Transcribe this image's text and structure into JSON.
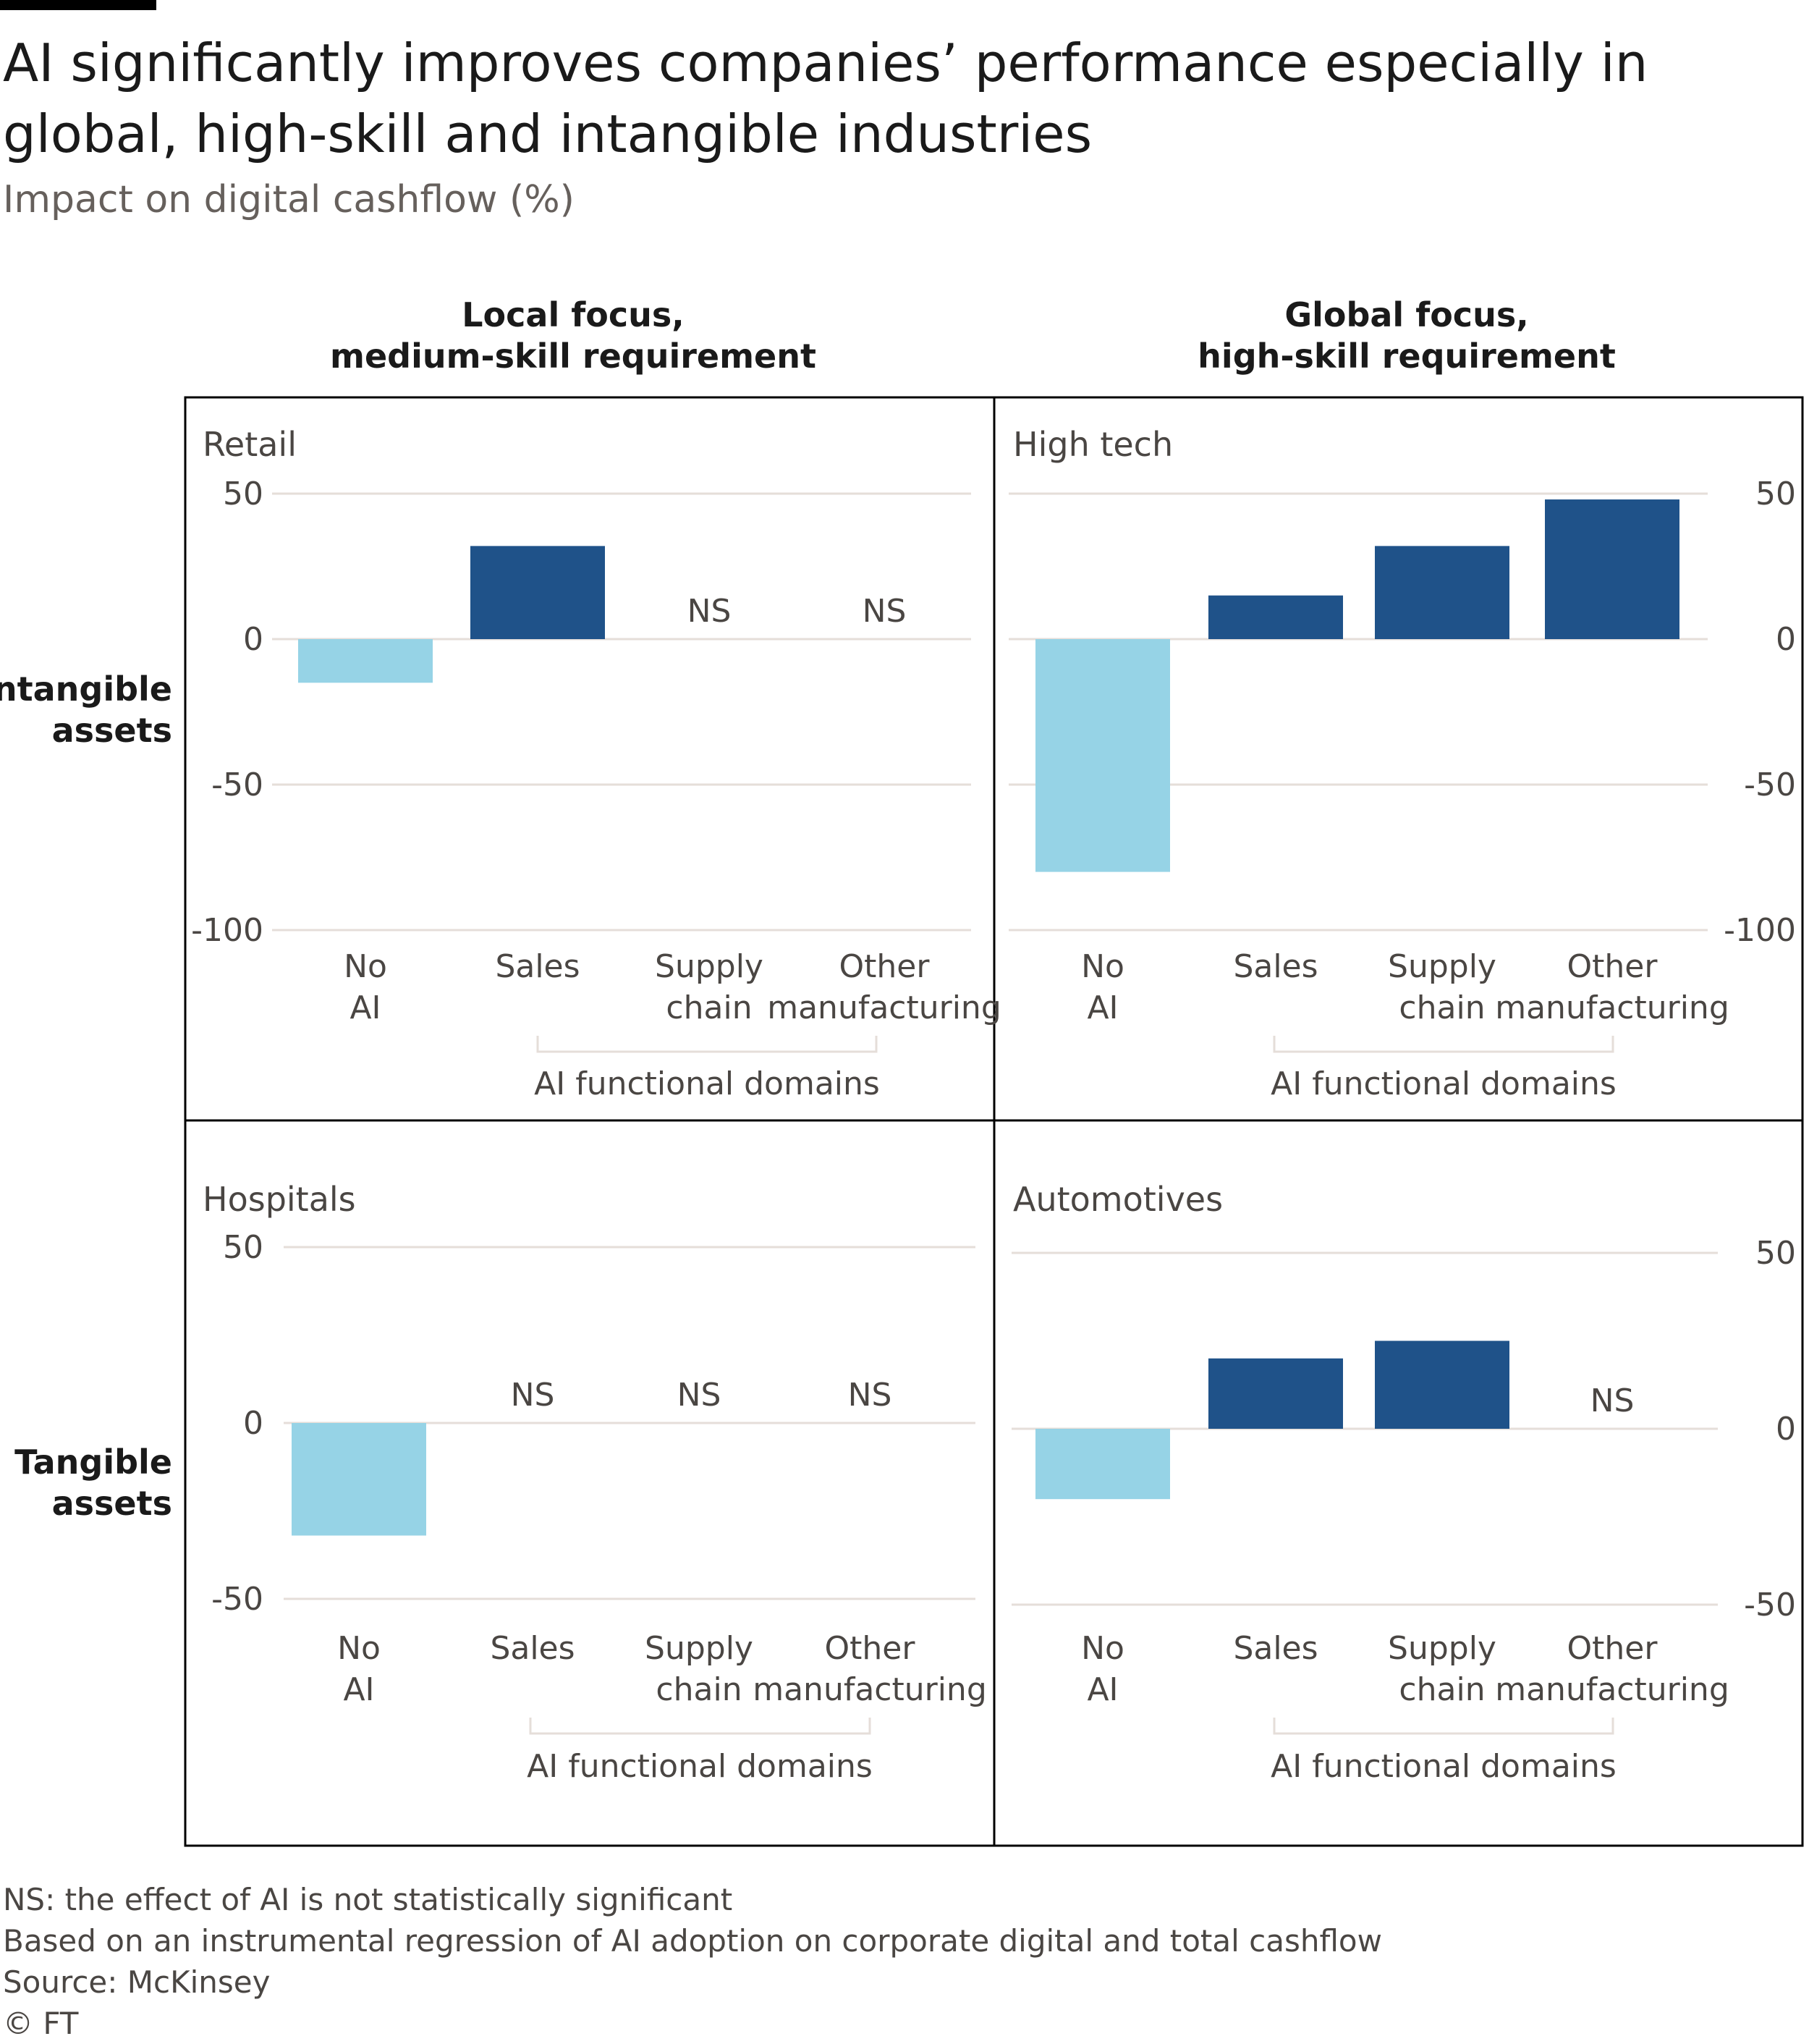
{
  "title": "AI significantly improves companies’ performance especially in global, high-skill and intangible industries",
  "subtitle": "Impact on digital cashflow (%)",
  "column_headers": [
    {
      "line1": "Local focus,",
      "line2": "medium-skill requirement"
    },
    {
      "line1": "Global focus,",
      "line2": "high-skill requirement"
    }
  ],
  "row_headers": [
    {
      "line1": "Intangible",
      "line2": "assets"
    },
    {
      "line1": "Tangible",
      "line2": "assets"
    }
  ],
  "domain_label": "AI functional domains",
  "ns_label": "NS",
  "colors": {
    "no_ai": "#96d3e6",
    "ai": "#1f5289",
    "grid": "#e5ded9",
    "text": "#4a4643",
    "border": "#000000"
  },
  "chart_data": [
    {
      "type": "bar",
      "title": "Retail",
      "categories": [
        "No AI",
        "Sales",
        "Supply chain",
        "Other manufacturing"
      ],
      "values": [
        -15,
        32,
        null,
        null
      ],
      "significant": [
        true,
        true,
        false,
        false
      ],
      "yticks": [
        50,
        0,
        -50,
        -100
      ],
      "ylim": [
        -100,
        50
      ]
    },
    {
      "type": "bar",
      "title": "High tech",
      "categories": [
        "No AI",
        "Sales",
        "Supply chain",
        "Other manufacturing"
      ],
      "values": [
        -80,
        15,
        32,
        48
      ],
      "significant": [
        true,
        true,
        true,
        true
      ],
      "yticks": [
        50,
        0,
        -50,
        -100
      ],
      "ylim": [
        -100,
        50
      ]
    },
    {
      "type": "bar",
      "title": "Hospitals",
      "categories": [
        "No AI",
        "Sales",
        "Supply chain",
        "Other manufacturing"
      ],
      "values": [
        -32,
        null,
        null,
        null
      ],
      "significant": [
        true,
        false,
        false,
        false
      ],
      "yticks": [
        50,
        0,
        -50
      ],
      "ylim": [
        -50,
        50
      ]
    },
    {
      "type": "bar",
      "title": "Automotives",
      "categories": [
        "No AI",
        "Sales",
        "Supply chain",
        "Other manufacturing"
      ],
      "values": [
        -20,
        20,
        25,
        null
      ],
      "significant": [
        true,
        true,
        true,
        false
      ],
      "yticks": [
        50,
        0,
        -50
      ],
      "ylim": [
        -50,
        50
      ]
    }
  ],
  "footnotes": [
    "NS: the effect of AI is not statistically significant",
    "Based on an instrumental regression of AI adoption on corporate digital and total cashflow",
    "Source: McKinsey",
    "© FT"
  ]
}
